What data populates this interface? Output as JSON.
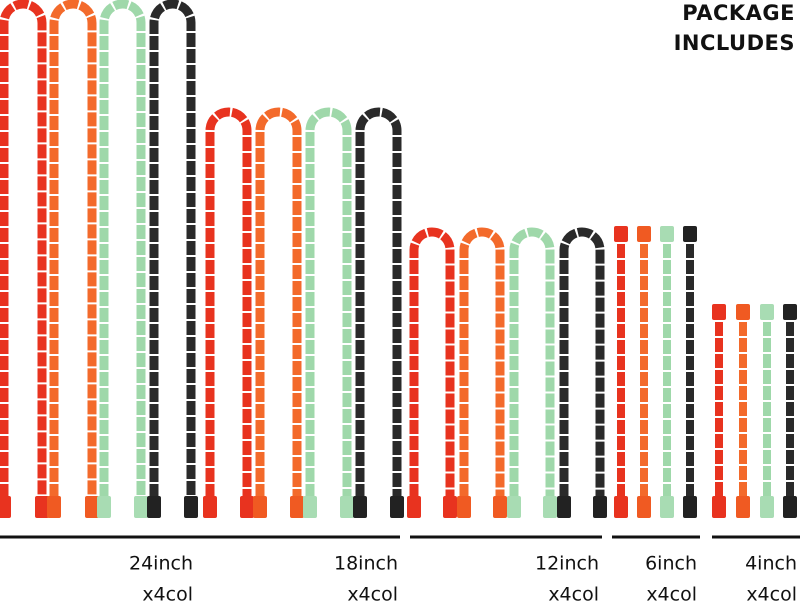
{
  "header": {
    "lines": [
      "PACKAGE",
      "INCLUDES"
    ]
  },
  "groups": [
    {
      "size": "24inch",
      "count": "x4col"
    },
    {
      "size": "18inch",
      "count": "x4col"
    },
    {
      "size": "12inch",
      "count": "x4col"
    },
    {
      "size": "6inch",
      "count": "x4col"
    },
    {
      "size": "4inch",
      "count": "x4col"
    }
  ]
}
